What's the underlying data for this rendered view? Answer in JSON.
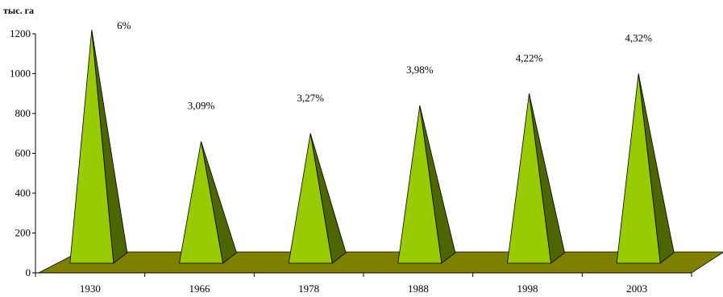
{
  "chart_data": {
    "type": "bar",
    "style": "3d-pyramid",
    "ylabel": "тыс. га",
    "xlabel": "",
    "title": "",
    "categories": [
      "1930",
      "1966",
      "1978",
      "1988",
      "1998",
      "2003"
    ],
    "values": [
      1220,
      660,
      700,
      840,
      900,
      1000
    ],
    "annotations": [
      "6%",
      "3,09%",
      "3,27%",
      "3,98%",
      "4,22%",
      "4,32%"
    ],
    "ylim": [
      0,
      1200
    ],
    "yticks": [
      "0",
      "200",
      "400",
      "600",
      "800",
      "1000",
      "1200"
    ],
    "grid": false,
    "legend": "none",
    "colors": {
      "pyramid_front": "#99cc00",
      "pyramid_side": "#4d6600",
      "floor": "#808000",
      "axis": "#000000"
    }
  }
}
